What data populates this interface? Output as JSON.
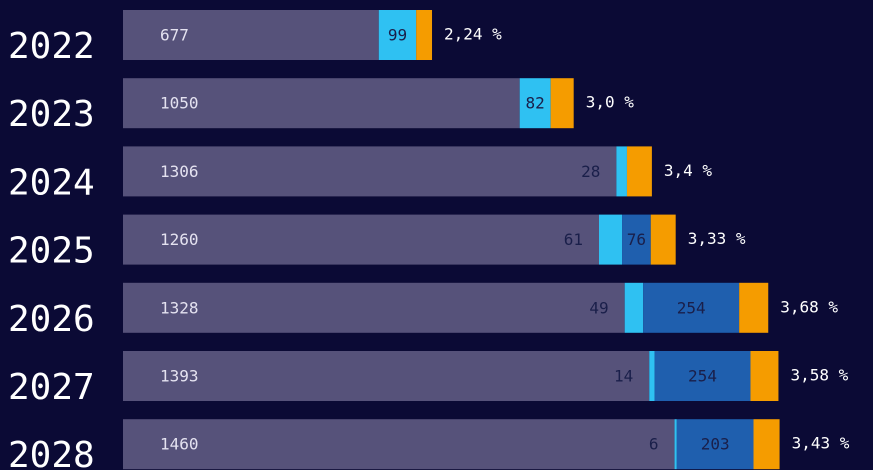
{
  "chart_data": {
    "type": "stacked-barh",
    "categories": [
      "2022",
      "2023",
      "2024",
      "2025",
      "2026",
      "2027",
      "2028"
    ],
    "series": [
      {
        "color": "#56527a",
        "values": [
          677,
          1050,
          1306,
          1260,
          1328,
          1393,
          1460
        ]
      },
      {
        "color": "#2fc1f2",
        "values": [
          99,
          82,
          28,
          61,
          49,
          14,
          6
        ]
      },
      {
        "color": "#1f5fae",
        "values": [
          null,
          null,
          null,
          76,
          254,
          254,
          203
        ]
      },
      {
        "color": "#f59c00",
        "values": [
          42,
          61,
          66,
          66,
          77,
          74,
          69
        ]
      }
    ],
    "annotations": [
      "2,24 %",
      "3,0 %",
      "3,4 %",
      "3,33 %",
      "3,68 %",
      "3,58 %",
      "3,43 %"
    ],
    "xlim": [
      0,
      1980
    ]
  }
}
